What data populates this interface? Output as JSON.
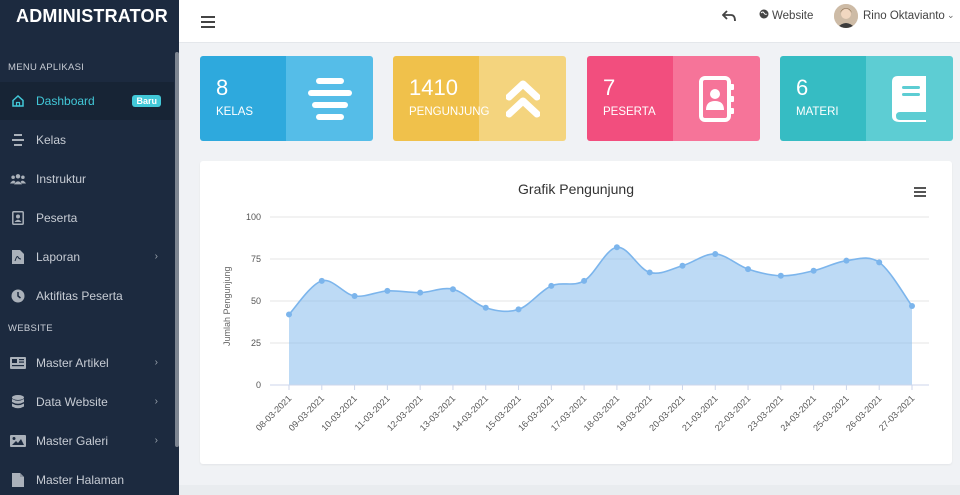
{
  "sidebar": {
    "brand": "ADMINISTRATOR",
    "section_app": "MENU APLIKASI",
    "section_web": "WEBSITE",
    "items": [
      {
        "label": "Dashboard",
        "icon": "home-icon",
        "badge": "Baru",
        "active": true
      },
      {
        "label": "Kelas",
        "icon": "align-center-icon"
      },
      {
        "label": "Instruktur",
        "icon": "users-icon"
      },
      {
        "label": "Peserta",
        "icon": "id-card-icon"
      },
      {
        "label": "Laporan",
        "icon": "file-pdf-icon",
        "has_children": true
      },
      {
        "label": "Aktifitas Peserta",
        "icon": "clock-icon"
      },
      {
        "label": "Master Artikel",
        "icon": "newspaper-icon",
        "has_children": true
      },
      {
        "label": "Data Website",
        "icon": "database-icon",
        "has_children": true
      },
      {
        "label": "Master Galeri",
        "icon": "image-icon",
        "has_children": true
      },
      {
        "label": "Master Halaman",
        "icon": "file-icon"
      }
    ]
  },
  "topbar": {
    "website_label": "Website",
    "user_name": "Rino Oktavianto"
  },
  "stats": [
    {
      "value": "8",
      "label": "KELAS",
      "icon": "align-center-icon",
      "color_left": "#2ea9dd",
      "color_right": "#55bde8"
    },
    {
      "value": "1410",
      "label": "PENGUNJUNG",
      "icon": "double-chevron-up-icon",
      "color_left": "#f0c14b",
      "color_right": "#f4d47e"
    },
    {
      "value": "7",
      "label": "PESERTA",
      "icon": "address-book-icon",
      "color_left": "#f24e7e",
      "color_right": "#f67499"
    },
    {
      "value": "6",
      "label": "MATERI",
      "icon": "book-icon",
      "color_left": "#36bcc3",
      "color_right": "#5dcdd3"
    }
  ],
  "chart_data": {
    "type": "area",
    "title": "Grafik Pengunjung",
    "ylabel": "Jumlah Pengunjung",
    "ylim": [
      0,
      100
    ],
    "yticks": [
      0,
      25,
      50,
      75,
      100
    ],
    "grid": true,
    "color": "#7cb5ec",
    "categories": [
      "08-03-2021",
      "09-03-2021",
      "10-03-2021",
      "11-03-2021",
      "12-03-2021",
      "13-03-2021",
      "14-03-2021",
      "15-03-2021",
      "16-03-2021",
      "17-03-2021",
      "18-03-2021",
      "19-03-2021",
      "20-03-2021",
      "21-03-2021",
      "22-03-2021",
      "23-03-2021",
      "24-03-2021",
      "25-03-2021",
      "26-03-2021",
      "27-03-2021"
    ],
    "values": [
      42,
      62,
      53,
      56,
      55,
      57,
      46,
      45,
      59,
      62,
      82,
      67,
      71,
      78,
      69,
      65,
      68,
      74,
      73,
      47
    ]
  }
}
